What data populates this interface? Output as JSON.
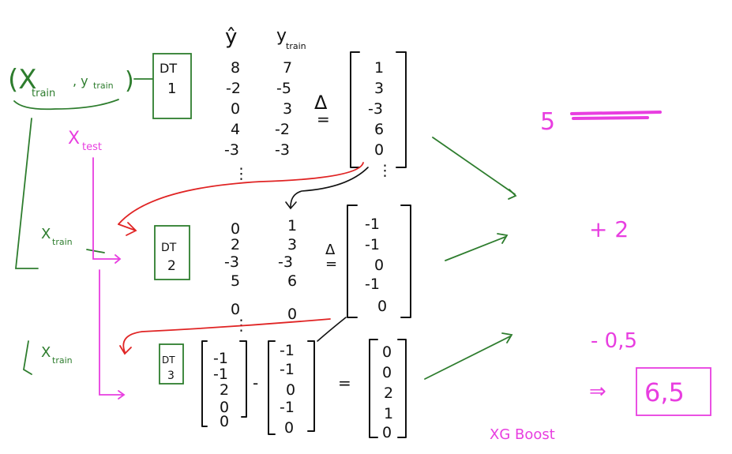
{
  "inputs": {
    "xy_train": "(X",
    "xy_train_sub": "train",
    "xy_train_y": ", y",
    "xy_train_y_sub": "train",
    "xy_train_close": ")",
    "x_test": "X",
    "x_test_sub": "test",
    "x_train_2": "X",
    "x_train_2_sub": "train",
    "x_train_3": "X",
    "x_train_3_sub": "train"
  },
  "trees": [
    {
      "label": "DT",
      "num": "1"
    },
    {
      "label": "DT",
      "num": "2"
    },
    {
      "label": "DT",
      "num": "3"
    }
  ],
  "headers": {
    "yhat": "ŷ",
    "ytrain": "y",
    "ytrain_sub": "train"
  },
  "stage1": {
    "yhat": [
      "8",
      "-2",
      "0",
      "4",
      "-3"
    ],
    "ytrain": [
      "7",
      "-5",
      "3",
      "-2",
      "-3"
    ],
    "delta_symbol": "Δ",
    "eq": "=",
    "residual": [
      "1",
      "3",
      "-3",
      "6",
      "0"
    ]
  },
  "stage2": {
    "pred": [
      "0",
      "2",
      "-3",
      "5",
      "0"
    ],
    "target": [
      "1",
      "3",
      "-3",
      "6",
      "0"
    ],
    "delta_symbol": "Δ",
    "eq": "=",
    "residual": [
      "-1",
      "-1",
      "0",
      "-1",
      "0"
    ]
  },
  "stage3": {
    "a": [
      "-1",
      "-1",
      "2",
      "0",
      "0"
    ],
    "minus": "-",
    "b": [
      "-1",
      "-1",
      "0",
      "-1",
      "0"
    ],
    "eq": "=",
    "residual": [
      "0",
      "0",
      "2",
      "1",
      "0"
    ]
  },
  "output": {
    "first": "5",
    "second": "+ 2",
    "third": "- 0,5",
    "arrow": "⇒",
    "final": "6,5",
    "caption": "XG Boost"
  },
  "ellipsis": "⋮"
}
